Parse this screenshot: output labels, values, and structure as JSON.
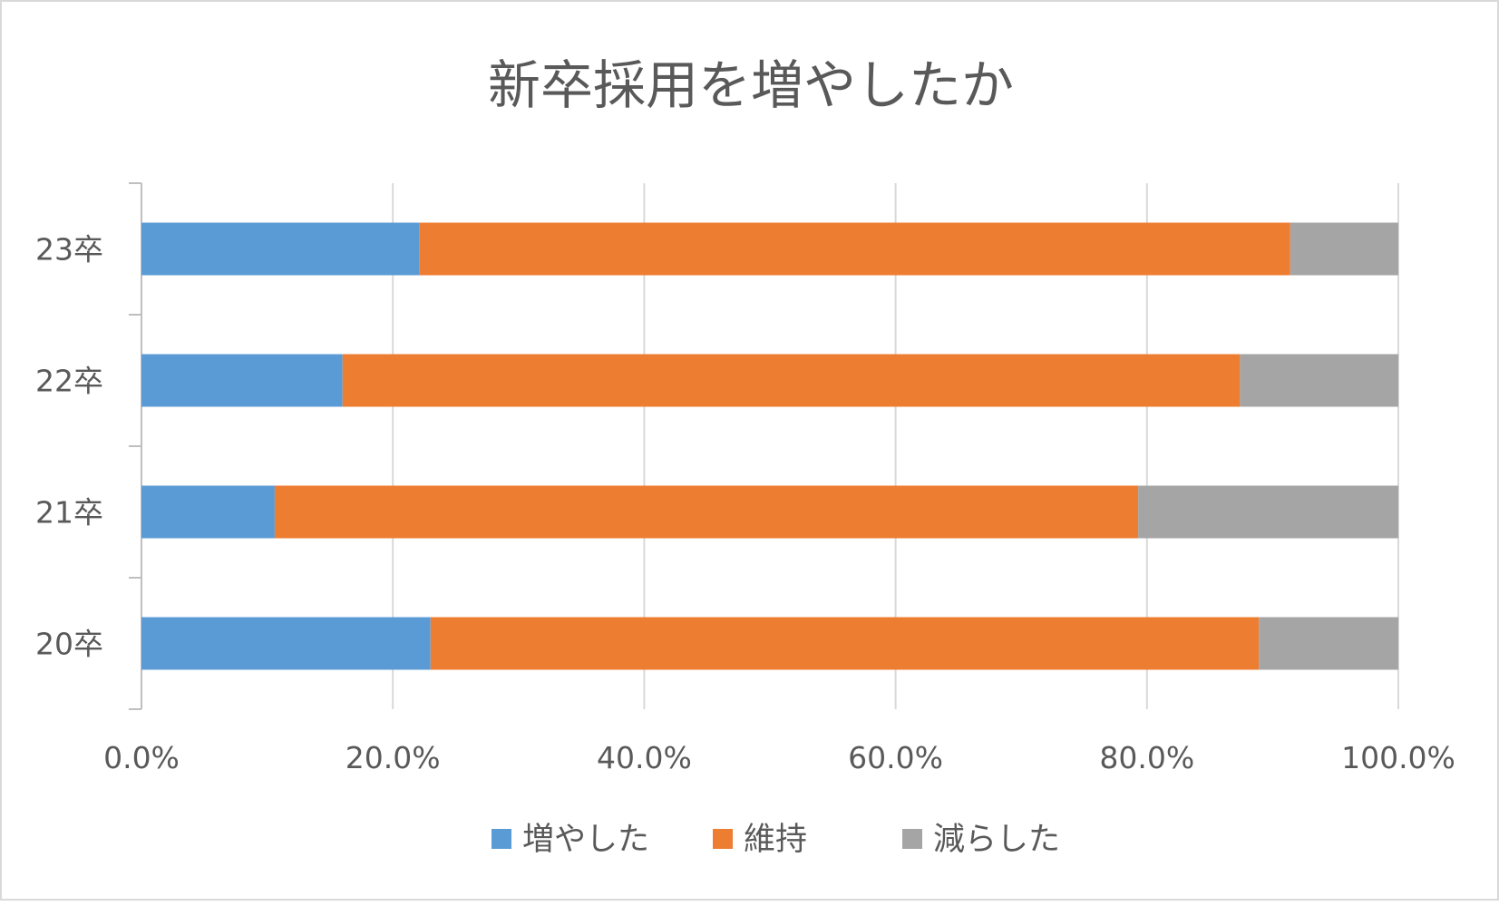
{
  "chart_data": {
    "type": "bar",
    "orientation": "horizontal",
    "stacked": "percent",
    "title": "新卒採用を増やしたか",
    "xlabel": "",
    "ylabel": "",
    "xlim": [
      0,
      100
    ],
    "x_ticks": [
      "0.0%",
      "20.0%",
      "40.0%",
      "60.0%",
      "80.0%",
      "100.0%"
    ],
    "x_tick_values": [
      0,
      20,
      40,
      60,
      80,
      100
    ],
    "grid": true,
    "legend_position": "bottom",
    "categories": [
      "20卒",
      "21卒",
      "22卒",
      "23卒"
    ],
    "series": [
      {
        "name": "増やした",
        "color": "#5b9bd5",
        "values": [
          23.0,
          10.6,
          16.0,
          22.1
        ]
      },
      {
        "name": "維持",
        "color": "#ed7d31",
        "values": [
          65.9,
          68.7,
          71.4,
          69.3
        ]
      },
      {
        "name": "減らした",
        "color": "#a5a5a5",
        "values": [
          11.1,
          20.7,
          12.6,
          8.6
        ]
      }
    ]
  }
}
